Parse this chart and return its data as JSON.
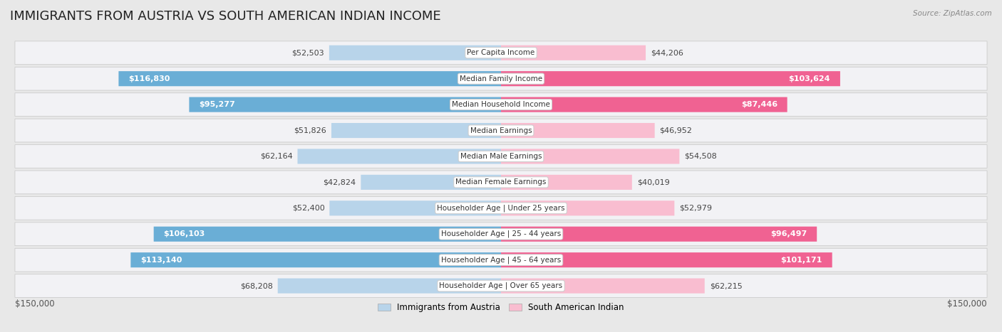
{
  "title": "IMMIGRANTS FROM AUSTRIA VS SOUTH AMERICAN INDIAN INCOME",
  "source": "Source: ZipAtlas.com",
  "categories": [
    "Per Capita Income",
    "Median Family Income",
    "Median Household Income",
    "Median Earnings",
    "Median Male Earnings",
    "Median Female Earnings",
    "Householder Age | Under 25 years",
    "Householder Age | 25 - 44 years",
    "Householder Age | 45 - 64 years",
    "Householder Age | Over 65 years"
  ],
  "austria_values": [
    52503,
    116830,
    95277,
    51826,
    62164,
    42824,
    52400,
    106103,
    113140,
    68208
  ],
  "indian_values": [
    44206,
    103624,
    87446,
    46952,
    54508,
    40019,
    52979,
    96497,
    101171,
    62215
  ],
  "austria_color_light": "#b8d4ea",
  "austria_color_dark": "#6aaed6",
  "india_color_light": "#f9bdd0",
  "india_color_dark": "#f06292",
  "threshold": 80000,
  "max_value": 150000,
  "bg_color": "#e8e8e8",
  "row_bg_color": "#f2f2f5",
  "axis_label_left": "$150,000",
  "axis_label_right": "$150,000",
  "legend_austria": "Immigrants from Austria",
  "legend_indian": "South American Indian",
  "title_fontsize": 13,
  "value_fontsize": 8,
  "category_fontsize": 7.5
}
